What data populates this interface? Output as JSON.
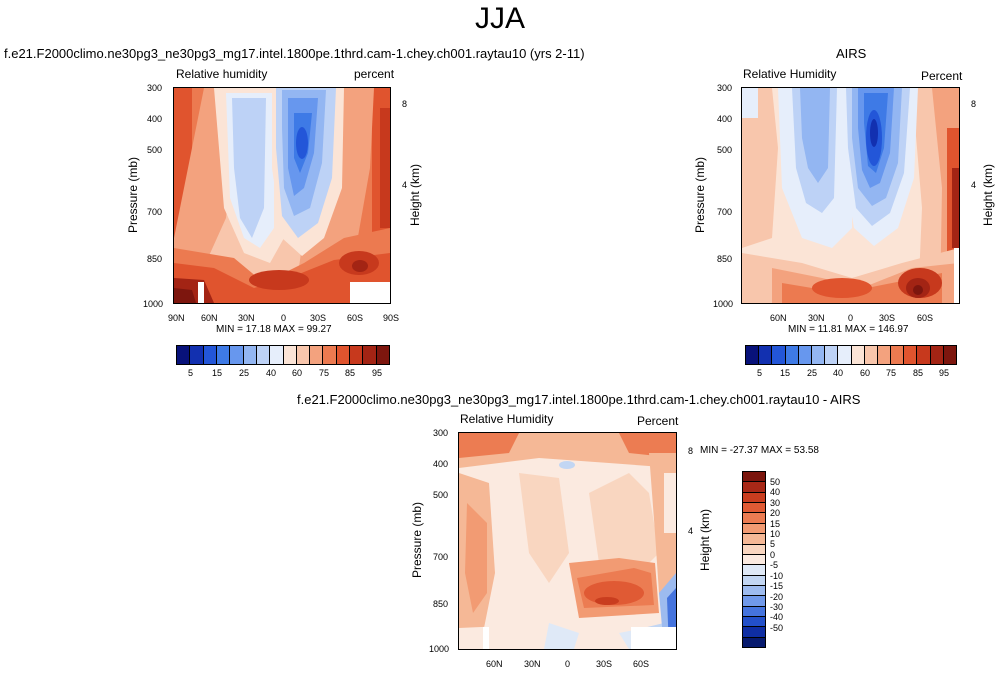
{
  "page_title": "JJA",
  "palette_rh": [
    "#08127a",
    "#1230b0",
    "#2356d8",
    "#3e7ae6",
    "#6797ee",
    "#93b6f2",
    "#bdd2f6",
    "#e6eefb",
    "#fbe4d6",
    "#f8c6ac",
    "#f3a27e",
    "#ec7a50",
    "#e0542e",
    "#c7391d",
    "#a32414",
    "#7d160e"
  ],
  "palette_diff": [
    "#7b150d",
    "#a82817",
    "#c93d1f",
    "#e05a34",
    "#ec7c52",
    "#f29b73",
    "#f5b896",
    "#f9d6c0",
    "#fbeae0",
    "#dfe9f7",
    "#c2d6f3",
    "#9dbbef",
    "#7099ea",
    "#4574de",
    "#2350c9",
    "#0f2ea3",
    "#071a6e"
  ],
  "labels": {
    "rh_var": "Relative humidity",
    "rh_var_caps": "Relative Humidity",
    "unit_model": "percent",
    "unit_obs": "Percent",
    "pressure_axis": "Pressure (mb)",
    "height_axis": "Height (km)"
  },
  "chart_data": [
    {
      "type": "heatmap",
      "id": "model",
      "title": "f.e21.F2000climo.ne30pg3_ne30pg3_mg17.intel.1800pe.1thrd.cam-1.chey.ch001.raytau10 (yrs 2-11)",
      "left_label": "Relative humidity",
      "right_label": "percent",
      "xlabel": "",
      "ylabel": "Pressure (mb)",
      "ylabel_right": "Height (km)",
      "x_ticks": [
        "90N",
        "60N",
        "30N",
        "0",
        "30S",
        "60S",
        "90S"
      ],
      "y_ticks": [
        "300",
        "400",
        "500",
        "700",
        "850",
        "1000"
      ],
      "y_right_ticks": [
        "8",
        "4"
      ],
      "stats": "MIN =  17.18   MAX =  99.27",
      "colorbar_levels": [
        "5",
        "15",
        "25",
        "40",
        "60",
        "75",
        "85",
        "95"
      ],
      "min": 17.18,
      "max": 99.27
    },
    {
      "type": "heatmap",
      "id": "obs",
      "title": "AIRS",
      "left_label": "Relative Humidity",
      "right_label": "Percent",
      "xlabel": "",
      "ylabel": "Pressure (mb)",
      "ylabel_right": "Height (km)",
      "x_ticks": [
        "60N",
        "30N",
        "0",
        "30S",
        "60S"
      ],
      "y_ticks": [
        "300",
        "400",
        "500",
        "700",
        "850",
        "1000"
      ],
      "y_right_ticks": [
        "8",
        "4"
      ],
      "stats": "MIN =  11.81   MAX = 146.97",
      "colorbar_levels": [
        "5",
        "15",
        "25",
        "40",
        "60",
        "75",
        "85",
        "95"
      ],
      "min": 11.81,
      "max": 146.97
    },
    {
      "type": "heatmap",
      "id": "diff",
      "title": "f.e21.F2000climo.ne30pg3_ne30pg3_mg17.intel.1800pe.1thrd.cam-1.chey.ch001.raytau10 - AIRS",
      "left_label": "Relative Humidity",
      "right_label": "Percent",
      "xlabel": "",
      "ylabel": "Pressure (mb)",
      "ylabel_right": "Height (km)",
      "x_ticks": [
        "60N",
        "30N",
        "0",
        "30S",
        "60S"
      ],
      "y_ticks": [
        "300",
        "400",
        "500",
        "700",
        "850",
        "1000"
      ],
      "y_right_ticks": [
        "8",
        "4"
      ],
      "stats": "MIN = -27.37   MAX =  53.58",
      "colorbar_levels": [
        "50",
        "40",
        "30",
        "20",
        "15",
        "10",
        "5",
        "0",
        "-5",
        "-10",
        "-15",
        "-20",
        "-30",
        "-40",
        "-50"
      ],
      "min": -27.37,
      "max": 53.58
    }
  ]
}
